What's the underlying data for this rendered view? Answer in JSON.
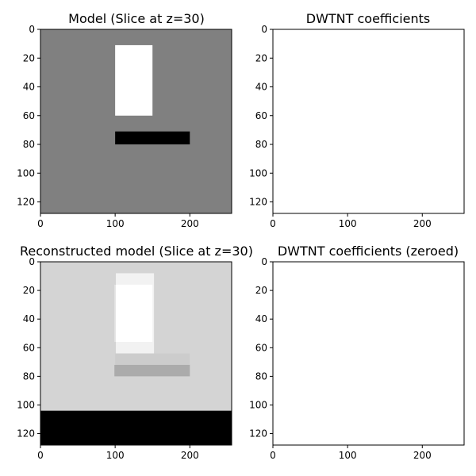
{
  "chart_data": [
    {
      "type": "heatmap",
      "title": "Model (Slice at z=30)",
      "xlim": [
        0,
        256
      ],
      "ylim": [
        128,
        0
      ],
      "xticks": [
        0,
        100,
        200
      ],
      "yticks": [
        0,
        20,
        40,
        60,
        80,
        100,
        120
      ],
      "grid": false,
      "colormap": "gray",
      "background_value": 0.5,
      "regions": [
        {
          "x": [
            100,
            150
          ],
          "y": [
            11,
            60
          ],
          "value": 1.0
        },
        {
          "x": [
            100,
            200
          ],
          "y": [
            71,
            80
          ],
          "value": 0.0
        }
      ]
    },
    {
      "type": "heatmap",
      "title": "DWTNT coefficients",
      "xlim": [
        0,
        256
      ],
      "ylim": [
        128,
        0
      ],
      "xticks": [
        0,
        100,
        200
      ],
      "yticks": [
        0,
        20,
        40,
        60,
        80,
        100,
        120
      ],
      "grid": false,
      "colormap": "gray",
      "background_value": 1.0,
      "regions": []
    },
    {
      "type": "heatmap",
      "title": "Reconstructed model (Slice at z=30)",
      "xlim": [
        0,
        256
      ],
      "ylim": [
        128,
        0
      ],
      "xticks": [
        0,
        100,
        200
      ],
      "yticks": [
        0,
        20,
        40,
        60,
        80,
        100,
        120
      ],
      "grid": false,
      "colormap": "gray",
      "background_value": 0.83,
      "regions": [
        {
          "x": [
            101,
            152
          ],
          "y": [
            8,
            64
          ],
          "value": 0.95
        },
        {
          "x": [
            101,
            150
          ],
          "y": [
            16,
            56
          ],
          "value": 1.0
        },
        {
          "x": [
            99,
            101
          ],
          "y": [
            16,
            56
          ],
          "value": 0.9
        },
        {
          "x": [
            100,
            200
          ],
          "y": [
            64,
            72
          ],
          "value": 0.8
        },
        {
          "x": [
            99,
            200
          ],
          "y": [
            72,
            80
          ],
          "value": 0.67
        },
        {
          "x": [
            0,
            256
          ],
          "y": [
            104,
            128
          ],
          "value": 0.0
        }
      ]
    },
    {
      "type": "heatmap",
      "title": "DWTNT coefficients (zeroed)",
      "xlim": [
        0,
        256
      ],
      "ylim": [
        128,
        0
      ],
      "xticks": [
        0,
        100,
        200
      ],
      "yticks": [
        0,
        20,
        40,
        60,
        80,
        100,
        120
      ],
      "grid": false,
      "colormap": "gray",
      "background_value": 1.0,
      "regions": []
    }
  ]
}
